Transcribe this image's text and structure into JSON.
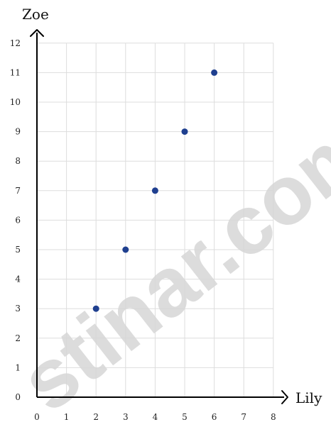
{
  "chart_data": {
    "type": "scatter",
    "xlabel": "Lily",
    "ylabel": "Zoe",
    "xlim": [
      0,
      8
    ],
    "ylim": [
      0,
      12
    ],
    "x_ticks": [
      0,
      1,
      2,
      3,
      4,
      5,
      6,
      7,
      8
    ],
    "y_ticks": [
      0,
      1,
      2,
      3,
      4,
      5,
      6,
      7,
      8,
      9,
      10,
      11,
      12
    ],
    "grid": true,
    "points": [
      {
        "x": 2,
        "y": 3
      },
      {
        "x": 3,
        "y": 5
      },
      {
        "x": 4,
        "y": 7
      },
      {
        "x": 5,
        "y": 9
      },
      {
        "x": 6,
        "y": 11
      }
    ],
    "point_color": "#1f3f8f",
    "grid_color": "#dddddd",
    "axis_color": "#000000"
  },
  "watermark": {
    "text": "stinar.com",
    "color": "#d7d7d7"
  }
}
